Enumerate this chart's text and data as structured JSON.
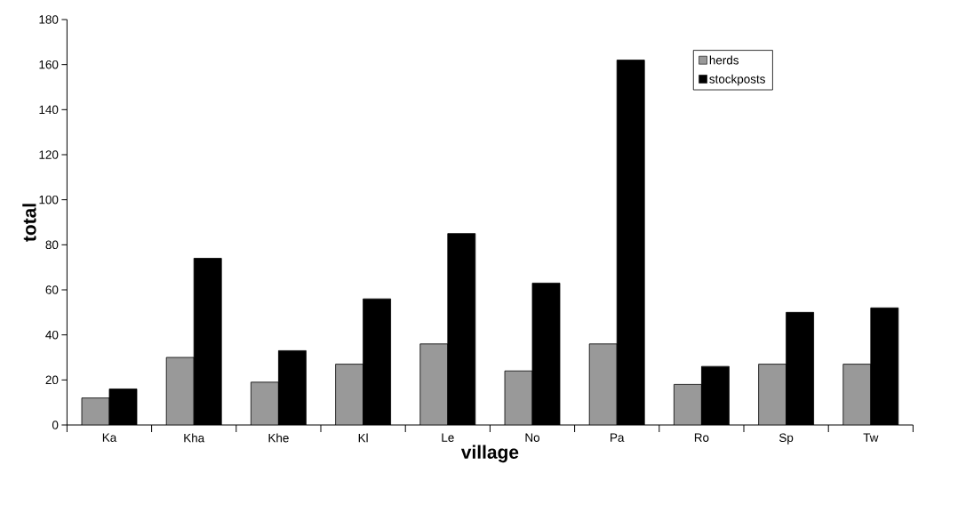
{
  "chart_data": {
    "type": "bar",
    "xlabel": "village",
    "ylabel": "total",
    "categories": [
      "Ka",
      "Kha",
      "Khe",
      "Kl",
      "Le",
      "No",
      "Pa",
      "Ro",
      "Sp",
      "Tw"
    ],
    "series": [
      {
        "name": "herds",
        "color": "#999999",
        "values": [
          12,
          30,
          19,
          27,
          36,
          24,
          36,
          18,
          27,
          27
        ]
      },
      {
        "name": "stockposts",
        "color": "#000000",
        "values": [
          16,
          74,
          33,
          56,
          85,
          63,
          162,
          26,
          50,
          52
        ]
      }
    ],
    "ylim": [
      0,
      180
    ],
    "yticks": [
      0,
      20,
      40,
      60,
      80,
      100,
      120,
      140,
      160,
      180
    ],
    "grid": false,
    "legend": "top right"
  }
}
